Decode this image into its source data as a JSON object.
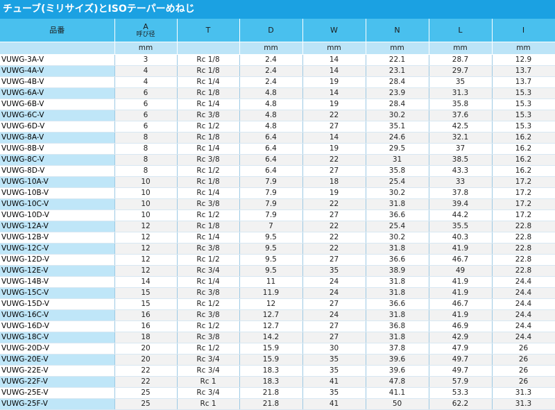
{
  "title": "チューブ(ミリサイズ)とISOテーパーめねじ",
  "columns": [
    {
      "key": "name",
      "label": "品番",
      "sub": "",
      "unit": ""
    },
    {
      "key": "a",
      "label": "A",
      "sub": "呼び径",
      "unit": "mm"
    },
    {
      "key": "t",
      "label": "T",
      "sub": "",
      "unit": ""
    },
    {
      "key": "d",
      "label": "D",
      "sub": "",
      "unit": "mm"
    },
    {
      "key": "w",
      "label": "W",
      "sub": "",
      "unit": "mm"
    },
    {
      "key": "n",
      "label": "N",
      "sub": "",
      "unit": "mm"
    },
    {
      "key": "l",
      "label": "L",
      "sub": "",
      "unit": "mm"
    },
    {
      "key": "i",
      "label": "I",
      "sub": "",
      "unit": "mm"
    }
  ],
  "rows": [
    [
      "VUWG-3A-V",
      "3",
      "Rc 1/8",
      "2.4",
      "14",
      "22.1",
      "28.7",
      "12.9"
    ],
    [
      "VUWG-4A-V",
      "4",
      "Rc 1/8",
      "2.4",
      "14",
      "23.1",
      "29.7",
      "13.7"
    ],
    [
      "VUWG-4B-V",
      "4",
      "Rc 1/4",
      "2.4",
      "19",
      "28.4",
      "35",
      "13.7"
    ],
    [
      "VUWG-6A-V",
      "6",
      "Rc 1/8",
      "4.8",
      "14",
      "23.9",
      "31.3",
      "15.3"
    ],
    [
      "VUWG-6B-V",
      "6",
      "Rc 1/4",
      "4.8",
      "19",
      "28.4",
      "35.8",
      "15.3"
    ],
    [
      "VUWG-6C-V",
      "6",
      "Rc 3/8",
      "4.8",
      "22",
      "30.2",
      "37.6",
      "15.3"
    ],
    [
      "VUWG-6D-V",
      "6",
      "Rc 1/2",
      "4.8",
      "27",
      "35.1",
      "42.5",
      "15.3"
    ],
    [
      "VUWG-8A-V",
      "8",
      "Rc 1/8",
      "6.4",
      "14",
      "24.6",
      "32.1",
      "16.2"
    ],
    [
      "VUWG-8B-V",
      "8",
      "Rc 1/4",
      "6.4",
      "19",
      "29.5",
      "37",
      "16.2"
    ],
    [
      "VUWG-8C-V",
      "8",
      "Rc 3/8",
      "6.4",
      "22",
      "31",
      "38.5",
      "16.2"
    ],
    [
      "VUWG-8D-V",
      "8",
      "Rc 1/2",
      "6.4",
      "27",
      "35.8",
      "43.3",
      "16.2"
    ],
    [
      "VUWG-10A-V",
      "10",
      "Rc 1/8",
      "7.9",
      "18",
      "25.4",
      "33",
      "17.2"
    ],
    [
      "VUWG-10B-V",
      "10",
      "Rc 1/4",
      "7.9",
      "19",
      "30.2",
      "37.8",
      "17.2"
    ],
    [
      "VUWG-10C-V",
      "10",
      "Rc 3/8",
      "7.9",
      "22",
      "31.8",
      "39.4",
      "17.2"
    ],
    [
      "VUWG-10D-V",
      "10",
      "Rc 1/2",
      "7.9",
      "27",
      "36.6",
      "44.2",
      "17.2"
    ],
    [
      "VUWG-12A-V",
      "12",
      "Rc 1/8",
      "7",
      "22",
      "25.4",
      "35.5",
      "22.8"
    ],
    [
      "VUWG-12B-V",
      "12",
      "Rc 1/4",
      "9.5",
      "22",
      "30.2",
      "40.3",
      "22.8"
    ],
    [
      "VUWG-12C-V",
      "12",
      "Rc 3/8",
      "9.5",
      "22",
      "31.8",
      "41.9",
      "22.8"
    ],
    [
      "VUWG-12D-V",
      "12",
      "Rc 1/2",
      "9.5",
      "27",
      "36.6",
      "46.7",
      "22.8"
    ],
    [
      "VUWG-12E-V",
      "12",
      "Rc 3/4",
      "9.5",
      "35",
      "38.9",
      "49",
      "22.8"
    ],
    [
      "VUWG-14B-V",
      "14",
      "Rc 1/4",
      "11",
      "24",
      "31.8",
      "41.9",
      "24.4"
    ],
    [
      "VUWG-15C-V",
      "15",
      "Rc 3/8",
      "11.9",
      "24",
      "31.8",
      "41.9",
      "24.4"
    ],
    [
      "VUWG-15D-V",
      "15",
      "Rc 1/2",
      "12",
      "27",
      "36.6",
      "46.7",
      "24.4"
    ],
    [
      "VUWG-16C-V",
      "16",
      "Rc 3/8",
      "12.7",
      "24",
      "31.8",
      "41.9",
      "24.4"
    ],
    [
      "VUWG-16D-V",
      "16",
      "Rc 1/2",
      "12.7",
      "27",
      "36.8",
      "46.9",
      "24.4"
    ],
    [
      "VUWG-18C-V",
      "18",
      "Rc 3/8",
      "14.2",
      "27",
      "31.8",
      "42.9",
      "24.4"
    ],
    [
      "VUWG-20D-V",
      "20",
      "Rc 1/2",
      "15.9",
      "30",
      "37.8",
      "47.9",
      "26"
    ],
    [
      "VUWG-20E-V",
      "20",
      "Rc 3/4",
      "15.9",
      "35",
      "39.6",
      "49.7",
      "26"
    ],
    [
      "VUWG-22E-V",
      "22",
      "Rc 3/4",
      "18.3",
      "35",
      "39.6",
      "49.7",
      "26"
    ],
    [
      "VUWG-22F-V",
      "22",
      "Rc 1",
      "18.3",
      "41",
      "47.8",
      "57.9",
      "26"
    ],
    [
      "VUWG-25E-V",
      "25",
      "Rc 3/4",
      "21.8",
      "35",
      "41.1",
      "53.3",
      "31.3"
    ],
    [
      "VUWG-25F-V",
      "25",
      "Rc 1",
      "21.8",
      "41",
      "50",
      "62.2",
      "31.3"
    ]
  ]
}
